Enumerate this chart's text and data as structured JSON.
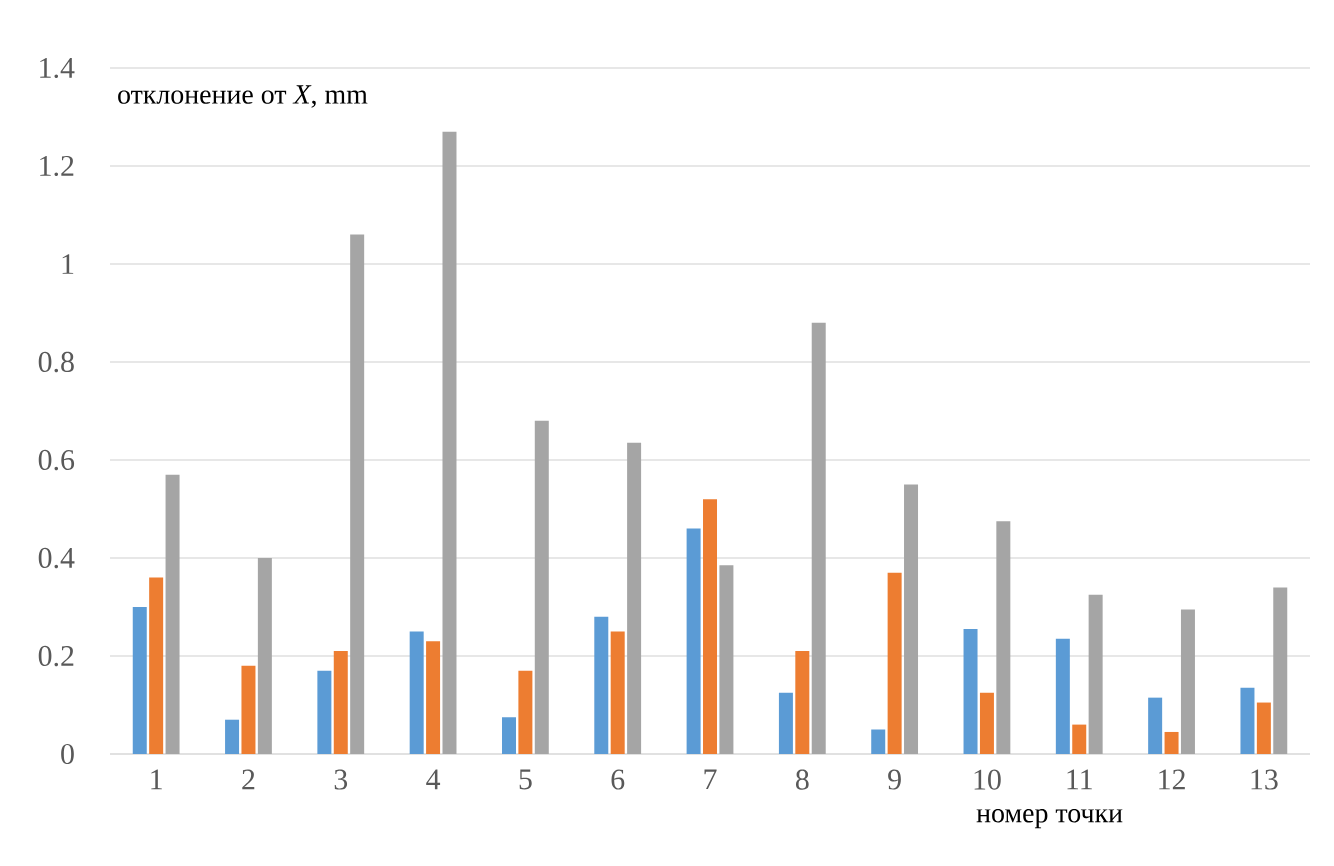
{
  "chart_data": {
    "type": "bar",
    "ylabel": "отклонение от *X*, mm",
    "xlabel": "номер точки",
    "categories": [
      "1",
      "2",
      "3",
      "4",
      "5",
      "6",
      "7",
      "8",
      "9",
      "10",
      "11",
      "12",
      "13"
    ],
    "series": [
      {
        "color": "#5b9bd5",
        "values": [
          0.3,
          0.07,
          0.17,
          0.25,
          0.075,
          0.28,
          0.46,
          0.125,
          0.05,
          0.255,
          0.235,
          0.115,
          0.135
        ]
      },
      {
        "color": "#ed7d31",
        "values": [
          0.36,
          0.18,
          0.21,
          0.23,
          0.17,
          0.25,
          0.52,
          0.21,
          0.37,
          0.125,
          0.06,
          0.045,
          0.105
        ]
      },
      {
        "color": "#a5a5a5",
        "values": [
          0.57,
          0.4,
          1.06,
          1.27,
          0.68,
          0.635,
          0.385,
          0.88,
          0.55,
          0.475,
          0.325,
          0.295,
          0.34
        ]
      }
    ],
    "ylim": [
      0,
      1.4
    ],
    "yticks": [
      0,
      0.2,
      0.4,
      0.6,
      0.8,
      1,
      1.2,
      1.4
    ],
    "grid": "y"
  }
}
